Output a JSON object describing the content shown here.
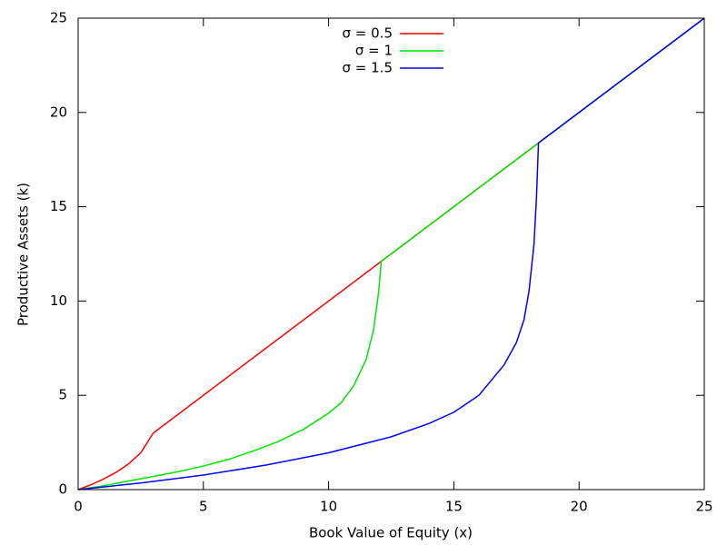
{
  "chart_data": {
    "type": "line",
    "x_label": "Book Value of Equity (x)",
    "y_label": "Productive Assets (k)",
    "xlim": [
      0,
      25
    ],
    "ylim": [
      0,
      25
    ],
    "xticks": [
      0,
      5,
      10,
      15,
      20,
      25
    ],
    "yticks": [
      0,
      5,
      10,
      15,
      20,
      25
    ],
    "legend": "top",
    "series": [
      {
        "name": "σ = 0.5",
        "color": "#ff0000",
        "x": [
          0,
          0.5,
          1,
          1.5,
          2,
          2.5,
          3,
          25
        ],
        "values": [
          0,
          0.25,
          0.55,
          0.9,
          1.35,
          1.95,
          3,
          25
        ]
      },
      {
        "name": "σ = 1",
        "color": "#00e600",
        "x": [
          0,
          1,
          2,
          3,
          4,
          5,
          6,
          7,
          8,
          9,
          10,
          10.5,
          11,
          11.5,
          11.8,
          12,
          12.1,
          18.4,
          25
        ],
        "values": [
          0,
          0.2,
          0.45,
          0.7,
          0.95,
          1.25,
          1.6,
          2.05,
          2.55,
          3.2,
          4.05,
          4.6,
          5.5,
          6.9,
          8.5,
          10.5,
          12.1,
          18.4,
          25
        ]
      },
      {
        "name": "σ = 1.5",
        "color": "#0000ff",
        "x": [
          0,
          2.5,
          5,
          7.5,
          10,
          12.5,
          14,
          15,
          16,
          17,
          17.5,
          17.8,
          18,
          18.2,
          18.3,
          18.38,
          25
        ],
        "values": [
          0,
          0.35,
          0.77,
          1.3,
          1.95,
          2.8,
          3.5,
          4.1,
          5.0,
          6.6,
          7.8,
          9,
          10.5,
          13,
          15.5,
          18.38,
          25
        ]
      }
    ]
  }
}
